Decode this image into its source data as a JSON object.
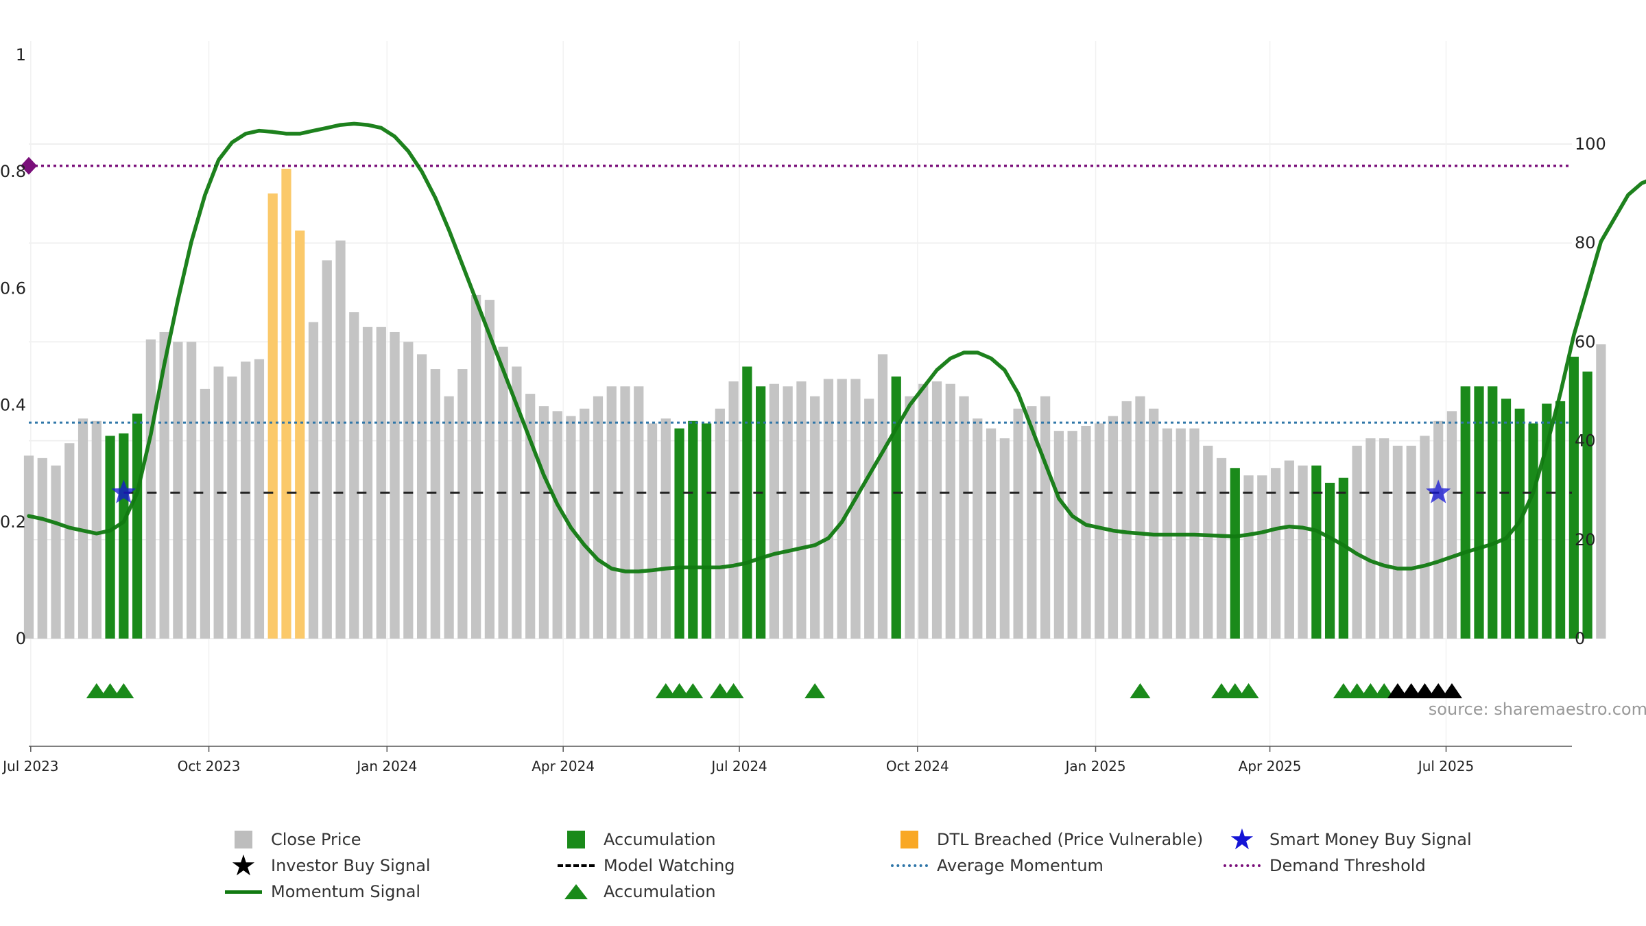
{
  "chart_data": {
    "type": "bar",
    "title": "",
    "xlabel": "",
    "ylabel": "",
    "source_note": "source: sharemaestro.com",
    "left_axis": {
      "ylim": [
        0,
        1
      ],
      "ticks": [
        0,
        0.2,
        0.4,
        0.6,
        0.8,
        1
      ],
      "tick_labels": [
        "0",
        "0.2",
        "0.4",
        "0.6",
        "0.8",
        "1"
      ]
    },
    "right_axis": {
      "ylim": [
        0,
        100
      ],
      "ticks": [
        0,
        20,
        40,
        60,
        80,
        100
      ],
      "tick_labels": [
        "0",
        "20",
        "40",
        "60",
        "80",
        "100"
      ]
    },
    "x_range": [
      "2023-06-30",
      "2025-09-04"
    ],
    "x_ticks": [
      {
        "date": "2023-07-01",
        "label": "Jul 2023"
      },
      {
        "date": "2023-10-01",
        "label": "Oct 2023"
      },
      {
        "date": "2024-01-01",
        "label": "Jan 2024"
      },
      {
        "date": "2024-04-01",
        "label": "Apr 2024"
      },
      {
        "date": "2024-07-01",
        "label": "Jul 2024"
      },
      {
        "date": "2024-10-01",
        "label": "Oct 2024"
      },
      {
        "date": "2025-01-01",
        "label": "Jan 2025"
      },
      {
        "date": "2025-04-01",
        "label": "Apr 2025"
      },
      {
        "date": "2025-07-01",
        "label": "Jul 2025"
      }
    ],
    "grid": true,
    "legend_position": "bottom",
    "colors": {
      "close": "#c4c4c4",
      "accumulation": "#1a8a1a",
      "dtl": "#fbc96a",
      "momentum": "#117a11",
      "average": "#2f76a8",
      "threshold": "#7a0f7a",
      "model_watching": "#222222",
      "smart_money": "#1414d6",
      "investor": "#000000"
    },
    "close_price": {
      "first_week": "2023-06-30",
      "bar_state_codes": "c=Close Price, a=Accumulation, d=DTL Breached (Price Vulnerable)",
      "values": [
        37,
        36.5,
        35,
        39.5,
        44.5,
        44,
        41,
        41.5,
        45.5,
        60.5,
        62,
        60,
        60,
        50.5,
        55,
        53,
        56,
        56.5,
        90,
        95,
        82.5,
        64,
        76.5,
        80.5,
        66,
        63,
        63,
        62,
        60,
        57.5,
        54.5,
        49,
        54.5,
        69.5,
        68.5,
        59,
        55,
        49.5,
        47,
        46,
        45,
        46.5,
        49,
        51,
        51,
        51,
        43.5,
        44.5,
        42.5,
        44,
        43.5,
        46.5,
        52,
        55,
        51,
        51.5,
        51,
        52,
        49,
        52.5,
        52.5,
        52.5,
        48.5,
        57.5,
        53,
        49,
        51.5,
        52,
        51.5,
        49,
        44.5,
        42.5,
        40.5,
        46.5,
        47,
        49,
        42,
        42,
        43,
        43.5,
        45,
        48,
        49,
        46.5,
        42.5,
        42.5,
        42.5,
        39,
        36.5,
        34.5,
        33,
        33,
        34.5,
        36,
        35,
        35,
        31.5,
        32.5,
        39,
        40.5,
        40.5,
        39,
        39,
        41,
        44,
        46,
        51,
        51,
        51,
        48.5,
        46.5,
        43.5,
        47.5,
        48,
        57,
        54,
        59.5
      ],
      "states": "ccccccaaacccccccccdddcccccccccccccccccccccccccccaaaccaacccccccccaccccccccccccccccccccccccacccccaaaccccccccaaaaaaaaaaccccccccccc"
    },
    "momentum_signal": {
      "series": "Momentum Signal",
      "values": [
        0.21,
        0.205,
        0.198,
        0.19,
        0.185,
        0.18,
        0.185,
        0.2,
        0.25,
        0.35,
        0.47,
        0.58,
        0.68,
        0.76,
        0.82,
        0.85,
        0.865,
        0.87,
        0.868,
        0.865,
        0.865,
        0.87,
        0.875,
        0.88,
        0.882,
        0.88,
        0.875,
        0.86,
        0.835,
        0.8,
        0.755,
        0.7,
        0.64,
        0.58,
        0.52,
        0.46,
        0.4,
        0.34,
        0.28,
        0.23,
        0.19,
        0.16,
        0.135,
        0.12,
        0.115,
        0.115,
        0.117,
        0.12,
        0.122,
        0.122,
        0.122,
        0.122,
        0.125,
        0.13,
        0.138,
        0.145,
        0.15,
        0.155,
        0.16,
        0.172,
        0.2,
        0.24,
        0.28,
        0.32,
        0.36,
        0.4,
        0.43,
        0.46,
        0.48,
        0.49,
        0.49,
        0.48,
        0.46,
        0.42,
        0.36,
        0.3,
        0.24,
        0.21,
        0.195,
        0.19,
        0.185,
        0.182,
        0.18,
        0.178,
        0.178,
        0.178,
        0.178,
        0.177,
        0.176,
        0.175,
        0.178,
        0.182,
        0.188,
        0.192,
        0.19,
        0.185,
        0.173,
        0.16,
        0.145,
        0.133,
        0.125,
        0.12,
        0.12,
        0.125,
        0.132,
        0.14,
        0.148,
        0.155,
        0.162,
        0.172,
        0.2,
        0.25,
        0.33,
        0.42,
        0.52,
        0.6,
        0.68,
        0.72,
        0.76,
        0.78,
        0.79,
        0.77,
        0.79,
        0.8
      ]
    },
    "average_momentum": 0.37,
    "demand_threshold": 0.81,
    "model_watching_level": 0.25,
    "smart_money_buy_signals": [
      "2023-08-18",
      "2025-06-27"
    ],
    "accumulation_markers": [
      "2023-08-04",
      "2023-08-11",
      "2023-08-18",
      "2024-05-24",
      "2024-05-31",
      "2024-06-07",
      "2024-06-21",
      "2024-06-28",
      "2024-08-09",
      "2025-01-24",
      "2025-03-07",
      "2025-03-14",
      "2025-03-21",
      "2025-05-09",
      "2025-05-16",
      "2025-05-23",
      "2025-05-30"
    ],
    "investor_buy_markers": [
      "2025-06-06",
      "2025-06-13",
      "2025-06-20",
      "2025-06-27",
      "2025-07-04"
    ]
  },
  "legend": {
    "items": [
      {
        "label": "Close Price",
        "symbol": "square",
        "color": "#bdbdbd"
      },
      {
        "label": "Accumulation",
        "symbol": "square",
        "color": "#1a8a1a"
      },
      {
        "label": "DTL Breached (Price Vulnerable)",
        "symbol": "square",
        "color": "#f9a825"
      },
      {
        "label": "Smart Money Buy Signal",
        "symbol": "star",
        "color": "#1414d6"
      },
      {
        "label": "Investor Buy Signal",
        "symbol": "star",
        "color": "#000000"
      },
      {
        "label": "Model Watching",
        "symbol": "dashed",
        "color": "#000000"
      },
      {
        "label": "Average Momentum",
        "symbol": "dotted",
        "color": "#2f76a8"
      },
      {
        "label": "Demand Threshold",
        "symbol": "dotted",
        "color": "#7a0f7a"
      },
      {
        "label": "Momentum Signal",
        "symbol": "solid",
        "color": "#117a11"
      },
      {
        "label": "Accumulation",
        "symbol": "triangle",
        "color": "#1a8a1a"
      }
    ]
  }
}
